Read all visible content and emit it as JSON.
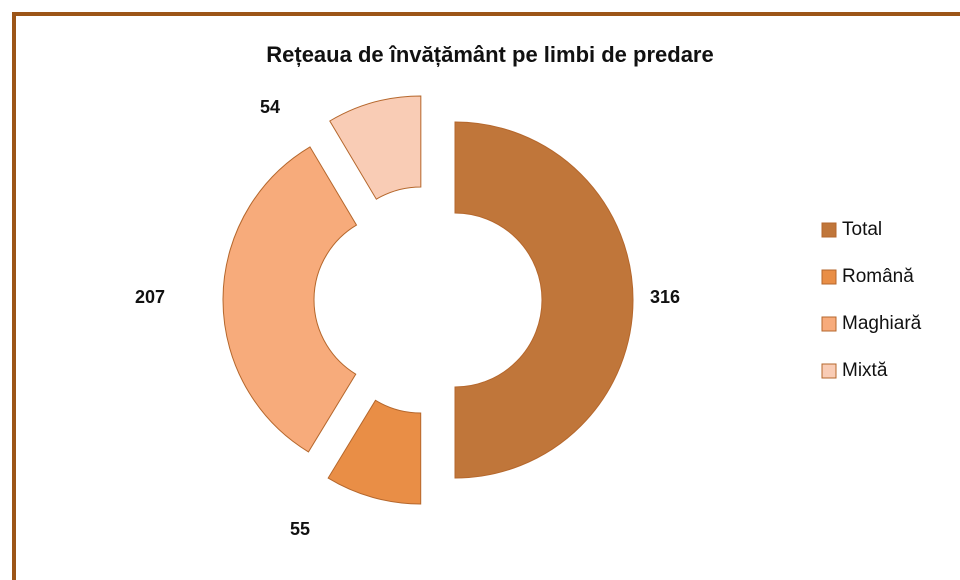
{
  "chart_data": {
    "type": "doughnut",
    "title": "Rețeaua de învățământ pe limbi de predare",
    "categories": [
      "Total",
      "Română",
      "Maghiară",
      "Mixtă"
    ],
    "values": [
      316,
      55,
      207,
      54
    ],
    "colors": [
      "#c0763a",
      "#e98e46",
      "#f7ab7b",
      "#f9ccb5"
    ],
    "legend": "right"
  }
}
